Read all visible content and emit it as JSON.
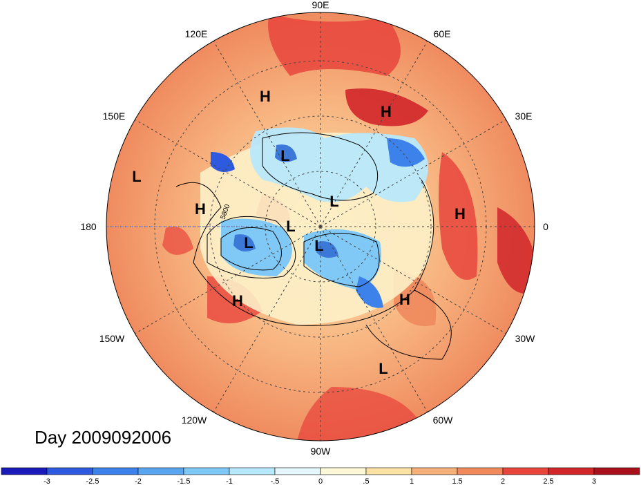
{
  "map": {
    "date_label": "Day 2009092006",
    "longitude_labels": {
      "top": "90E",
      "upper_left": "120E",
      "upper_right": "60E",
      "left_upper": "150E",
      "right_upper": "30E",
      "left": "180",
      "right": "0",
      "left_lower": "150W",
      "right_lower": "30W",
      "lower_left": "120W",
      "lower_right": "60W",
      "bottom": "90W"
    },
    "contour_label": "5800",
    "pressure_systems": [
      "H",
      "H",
      "L",
      "L",
      "H",
      "L",
      "L",
      "L",
      "L",
      "H",
      "H",
      "H",
      "L"
    ],
    "colors": {
      "land_warm": "#f08a5d",
      "hot": "#e8453c",
      "cool": "#9fd3f5",
      "cold": "#3c78d8"
    }
  },
  "colorbar": {
    "colors": [
      "#1a1ab8",
      "#2e5ae0",
      "#3c82ea",
      "#5aa5f0",
      "#80c8f5",
      "#b8e8fb",
      "#e6f6fd",
      "#fdf8d8",
      "#fbe2a4",
      "#f6b07a",
      "#f08a5d",
      "#e8453c",
      "#d1262a",
      "#a8111b"
    ],
    "tick_labels": [
      "-3",
      "-2.5",
      "-2",
      "-1.5",
      "-1",
      "-.5",
      "0",
      ".5",
      "1",
      "1.5",
      "2",
      "2.5",
      "3"
    ]
  }
}
